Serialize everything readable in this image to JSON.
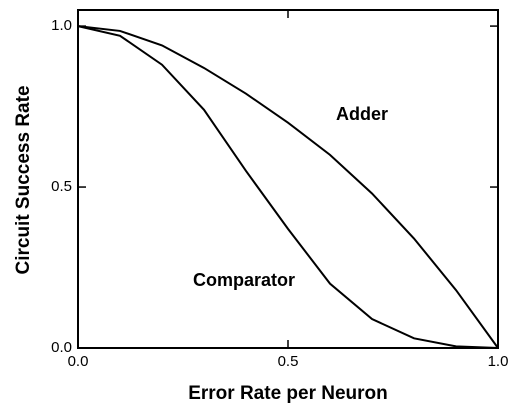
{
  "chart_data": {
    "type": "line",
    "xlabel": "Error Rate per Neuron",
    "ylabel": "Circuit Success Rate",
    "x": [
      0,
      0.1,
      0.2,
      0.3,
      0.4,
      0.5,
      0.6,
      0.7,
      0.8,
      0.9,
      1.0
    ],
    "series": [
      {
        "name": "Adder",
        "color": "#000000",
        "values": [
          1,
          0.985,
          0.94,
          0.87,
          0.79,
          0.7,
          0.6,
          0.48,
          0.34,
          0.18,
          0
        ]
      },
      {
        "name": "Comparator",
        "color": "#000000",
        "values": [
          1,
          0.97,
          0.88,
          0.74,
          0.55,
          0.37,
          0.2,
          0.09,
          0.03,
          0.005,
          0
        ]
      }
    ],
    "xlim": [
      0,
      1
    ],
    "ylim": [
      0,
      1.05
    ],
    "xticks": [
      {
        "value": 0,
        "label": "0.0"
      },
      {
        "value": 0.5,
        "label": "0.5"
      },
      {
        "value": 1,
        "label": "1.0"
      }
    ],
    "yticks": [
      {
        "value": 0,
        "label": "0.0"
      },
      {
        "value": 0.5,
        "label": "0.5"
      },
      {
        "value": 1,
        "label": "1.0"
      }
    ],
    "grid": false
  }
}
